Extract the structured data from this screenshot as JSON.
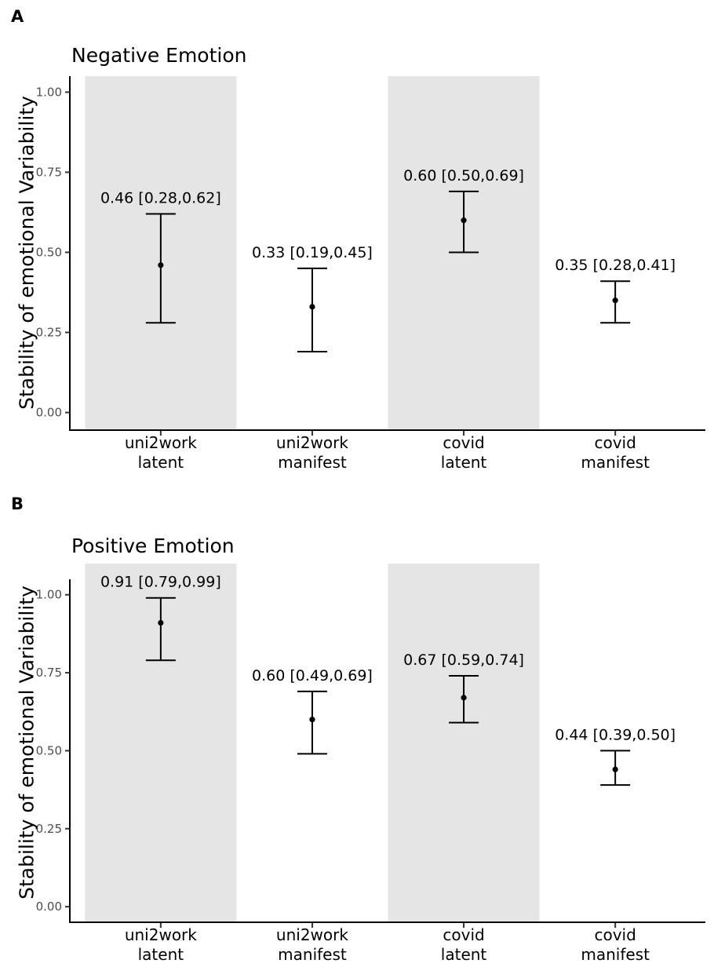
{
  "figure": {
    "panels": [
      {
        "panel_label": "A",
        "title": "Negative Emotion",
        "ylabel": "Stability of emotional Variability"
      },
      {
        "panel_label": "B",
        "title": "Positive Emotion",
        "ylabel": "Stability of emotional Variability"
      }
    ]
  },
  "colors": {
    "background": "#ffffff",
    "shaded_band": "#e5e5e5",
    "axis_line": "#000000",
    "tick_mark": "#333333",
    "y_tick_text": "#4d4d4d",
    "x_tick_text": "#000000",
    "data_ink": "#000000"
  },
  "chart_data": [
    {
      "type": "scatter",
      "panel": "A",
      "title": "Negative Emotion",
      "xlabel": "",
      "ylabel": "Stability of emotional Variability",
      "grid": false,
      "legend": false,
      "categories": [
        "uni2work latent",
        "uni2work manifest",
        "covid latent",
        "covid manifest"
      ],
      "category_lines": [
        [
          "uni2work",
          "latent"
        ],
        [
          "uni2work",
          "manifest"
        ],
        [
          "covid",
          "latent"
        ],
        [
          "covid",
          "manifest"
        ]
      ],
      "shaded_categories": [
        "uni2work latent",
        "covid latent"
      ],
      "yticks": [
        0.0,
        0.25,
        0.5,
        0.75,
        1.0
      ],
      "ytick_labels": [
        "0.00",
        "0.25",
        "0.50",
        "0.75",
        "1.00"
      ],
      "ylim": [
        -0.055,
        1.05
      ],
      "points": [
        {
          "category": "uni2work latent",
          "estimate": 0.46,
          "ci_lower": 0.28,
          "ci_upper": 0.62,
          "label": "0.46 [0.28,0.62]"
        },
        {
          "category": "uni2work manifest",
          "estimate": 0.33,
          "ci_lower": 0.19,
          "ci_upper": 0.45,
          "label": "0.33 [0.19,0.45]"
        },
        {
          "category": "covid latent",
          "estimate": 0.6,
          "ci_lower": 0.5,
          "ci_upper": 0.69,
          "label": "0.60 [0.50,0.69]"
        },
        {
          "category": "covid manifest",
          "estimate": 0.35,
          "ci_lower": 0.28,
          "ci_upper": 0.41,
          "label": "0.35 [0.28,0.41]"
        }
      ]
    },
    {
      "type": "scatter",
      "panel": "B",
      "title": "Positive Emotion",
      "xlabel": "",
      "ylabel": "Stability of emotional Variability",
      "grid": false,
      "legend": false,
      "categories": [
        "uni2work latent",
        "uni2work manifest",
        "covid latent",
        "covid manifest"
      ],
      "category_lines": [
        [
          "uni2work",
          "latent"
        ],
        [
          "uni2work",
          "manifest"
        ],
        [
          "covid",
          "latent"
        ],
        [
          "covid",
          "manifest"
        ]
      ],
      "shaded_categories": [
        "uni2work latent",
        "covid latent"
      ],
      "yticks": [
        0.0,
        0.25,
        0.5,
        0.75,
        1.0
      ],
      "ytick_labels": [
        "0.00",
        "0.25",
        "0.50",
        "0.75",
        "1.00"
      ],
      "ylim": [
        -0.05,
        1.1
      ],
      "points": [
        {
          "category": "uni2work latent",
          "estimate": 0.91,
          "ci_lower": 0.79,
          "ci_upper": 0.99,
          "label": "0.91 [0.79,0.99]"
        },
        {
          "category": "uni2work manifest",
          "estimate": 0.6,
          "ci_lower": 0.49,
          "ci_upper": 0.69,
          "label": "0.60 [0.49,0.69]"
        },
        {
          "category": "covid latent",
          "estimate": 0.67,
          "ci_lower": 0.59,
          "ci_upper": 0.74,
          "label": "0.67 [0.59,0.74]"
        },
        {
          "category": "covid manifest",
          "estimate": 0.44,
          "ci_lower": 0.39,
          "ci_upper": 0.5,
          "label": "0.44 [0.39,0.50]"
        }
      ]
    }
  ]
}
